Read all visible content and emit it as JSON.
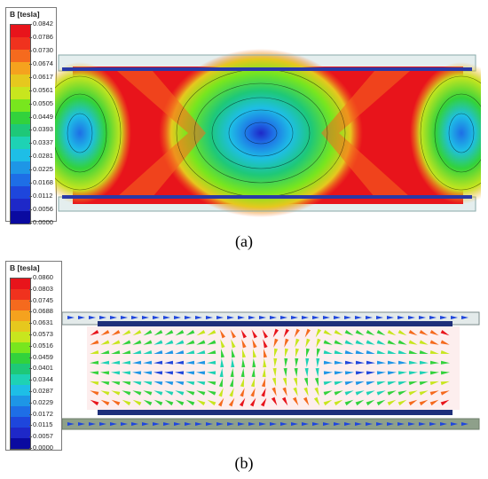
{
  "panel_a": {
    "legend_title": "B [tesla]",
    "legend_values": [
      "0.0842",
      "0.0786",
      "0.0730",
      "0.0674",
      "0.0617",
      "0.0561",
      "0.0505",
      "0.0449",
      "0.0393",
      "0.0337",
      "0.0281",
      "0.0225",
      "0.0168",
      "0.0112",
      "0.0056",
      "0.0000"
    ],
    "caption": "(a)"
  },
  "panel_b": {
    "legend_title": "B [tesla]",
    "legend_values": [
      "0.0860",
      "0.0803",
      "0.0745",
      "0.0688",
      "0.0631",
      "0.0573",
      "0.0516",
      "0.0459",
      "0.0401",
      "0.0344",
      "0.0287",
      "0.0229",
      "0.0172",
      "0.0115",
      "0.0057",
      "0.0000"
    ],
    "caption": "(b)"
  },
  "colormap": [
    "#e8141b",
    "#f0321e",
    "#f56a1e",
    "#f5a21e",
    "#e6c81e",
    "#c8e61e",
    "#78e61e",
    "#32d23c",
    "#1ec878",
    "#1ed2b4",
    "#1ebee6",
    "#1e96e6",
    "#1e6ee6",
    "#1e46dc",
    "#1e28c8",
    "#0a0aa0"
  ]
}
